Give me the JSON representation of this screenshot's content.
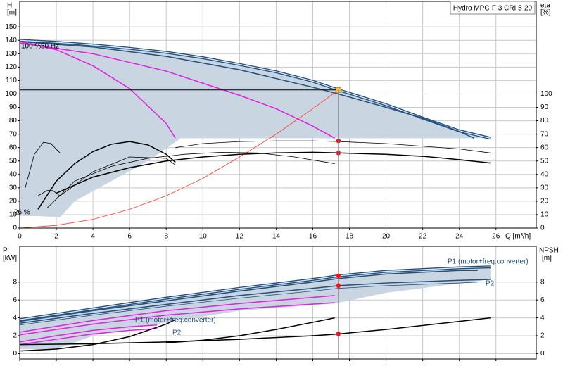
{
  "chart_data": [
    {
      "type": "line",
      "title": "Hydro MPC-F 3 CRI 5-20",
      "y_label": "H",
      "y_unit": "[m]",
      "y2_label": "eta",
      "y2_unit": "[%]",
      "x_label": "Q [m³/h]",
      "xlim": [
        0,
        28.2
      ],
      "xticks": [
        0,
        2,
        4,
        6,
        8,
        10,
        12,
        14,
        16,
        18,
        20,
        22,
        24,
        26
      ],
      "show_xtick_labels": true,
      "ylim": [
        0,
        169
      ],
      "yticks": [
        0,
        10,
        20,
        30,
        40,
        50,
        60,
        70,
        80,
        90,
        100,
        110,
        120,
        130,
        140,
        150
      ],
      "y2lim": [
        0,
        169
      ],
      "y2ticks": [
        0,
        10,
        20,
        30,
        40,
        50,
        60,
        70,
        80,
        90,
        100
      ],
      "grid": true,
      "annotations": [
        "100 %",
        "50 Hz",
        "26 %"
      ],
      "areas": [
        {
          "color": "#c9d5e1",
          "x": [
            0,
            2,
            4,
            6,
            8,
            10,
            12,
            14,
            16,
            18,
            20,
            22,
            24,
            25.7,
            8.8,
            7,
            5,
            3,
            2.2,
            1,
            0
          ],
          "values": [
            140,
            138.5,
            136.5,
            134,
            131,
            127,
            122,
            116.5,
            109.5,
            100.5,
            92,
            82,
            72.5,
            67,
            67,
            50,
            35,
            20,
            8,
            9,
            9
          ]
        }
      ],
      "series": [
        {
          "color": "#23507e",
          "style": "double",
          "x": [
            0,
            2,
            4,
            6,
            8,
            10,
            12,
            14,
            16,
            17.4,
            18,
            20,
            22,
            24,
            25.7
          ],
          "values": [
            140,
            138.5,
            136.5,
            134,
            131,
            127,
            122,
            116.5,
            109.5,
            103,
            100.5,
            92,
            82,
            72.5,
            67
          ]
        },
        {
          "color": "#23507e",
          "style": "single",
          "x": [
            0,
            4,
            8,
            12,
            16,
            17.4,
            20,
            22,
            24,
            24.8
          ],
          "values": [
            139,
            135,
            128,
            118,
            105,
            100,
            90,
            82,
            72,
            67
          ]
        },
        {
          "color": "#e020e0",
          "style": "single",
          "x": [
            0,
            2,
            4,
            6,
            8,
            8.5
          ],
          "values": [
            139,
            133,
            121,
            104,
            78,
            67
          ]
        },
        {
          "color": "#e020e0",
          "style": "single",
          "x": [
            0,
            4,
            8,
            12,
            14,
            16,
            17.2
          ],
          "values": [
            138,
            130,
            117,
            99,
            89,
            76,
            67
          ]
        },
        {
          "color": "#ff3a2a",
          "style": "thin",
          "x": [
            0,
            2,
            4,
            6,
            8,
            10,
            12,
            14,
            16,
            17.4
          ],
          "values": [
            0,
            2,
            6.5,
            14,
            24,
            37,
            53,
            70,
            89,
            103
          ]
        },
        {
          "color": "#000000",
          "style": "single",
          "axis": "y2",
          "x": [
            2,
            4,
            6,
            8,
            10,
            12,
            14,
            16,
            17.4,
            20,
            22,
            24,
            25.7
          ],
          "values": [
            26,
            38,
            45,
            50,
            53,
            55,
            56,
            56.5,
            56,
            55,
            53.5,
            51,
            48.5
          ]
        },
        {
          "color": "#000000",
          "style": "thin",
          "axis": "y2",
          "x": [
            8.5,
            10,
            12,
            14,
            16,
            17.4,
            20,
            22,
            24,
            25.7
          ],
          "values": [
            60,
            63,
            64.5,
            65,
            65,
            64.5,
            63,
            61,
            59,
            56
          ]
        },
        {
          "color": "#000000",
          "style": "thin",
          "axis": "y2",
          "x": [
            1.5,
            3,
            5,
            7,
            9,
            11,
            13,
            15,
            17.2
          ],
          "values": [
            15,
            35,
            46,
            52,
            55,
            56.5,
            56,
            53,
            48
          ]
        },
        {
          "color": "#000000",
          "style": "single",
          "axis": "y2",
          "x": [
            1,
            2,
            3,
            4,
            5,
            6,
            7,
            8,
            8.5
          ],
          "values": [
            14,
            35,
            48,
            57,
            62.5,
            64.5,
            62,
            55,
            49
          ]
        },
        {
          "color": "#000000",
          "style": "thin",
          "axis": "y2",
          "x": [
            2,
            4,
            6,
            8,
            8.5
          ],
          "values": [
            22,
            42,
            53,
            52,
            47
          ]
        },
        {
          "color": "#000000",
          "style": "thin",
          "axis": "y2",
          "x": [
            0.3,
            0.8,
            1.3,
            1.7,
            2.2
          ],
          "values": [
            30,
            55,
            64,
            63,
            56
          ]
        },
        {
          "color": "#000000",
          "style": "thin",
          "axis": "y2",
          "x": [
            1,
            1.5,
            1.8,
            2.2
          ],
          "values": [
            24,
            28,
            28,
            24
          ]
        }
      ],
      "markers": [
        {
          "color": "#f5b942",
          "x": 17.4,
          "value": 103
        },
        {
          "color": "#ee1111",
          "axis": "y2",
          "x": 17.4,
          "value": 65
        },
        {
          "color": "#ee1111",
          "axis": "y2",
          "x": 17.4,
          "value": 56
        }
      ]
    },
    {
      "type": "line",
      "y_label": "P",
      "y_unit": "[kW]",
      "y2_label": "NPSH",
      "y2_unit": "[m]",
      "xlim": [
        0,
        28.2
      ],
      "xticks": [
        0,
        2,
        4,
        6,
        8,
        10,
        12,
        14,
        16,
        18,
        20,
        22,
        24,
        26
      ],
      "show_xtick_labels": false,
      "ylim": [
        -0.6,
        12
      ],
      "yticks": [
        0,
        2,
        4,
        6,
        8
      ],
      "y2lim": [
        -0.6,
        12
      ],
      "y2ticks": [
        0,
        2,
        4,
        6,
        8
      ],
      "grid": true,
      "annotations": [
        "P1 (motor+freq.converter)",
        "P2",
        "P1 (motor+freq.converter)",
        "P2"
      ],
      "areas": [
        {
          "color": "#c9d5e1",
          "x": [
            0,
            4,
            8,
            12,
            16,
            20,
            24,
            25.7,
            25.7,
            20,
            17.2,
            12,
            8,
            4,
            2,
            0
          ],
          "values": [
            3.8,
            5.0,
            6.2,
            7.3,
            8.3,
            9.2,
            9.6,
            9.7,
            8.3,
            6.8,
            5.6,
            4.8,
            3.5,
            2,
            0.5,
            0.5
          ]
        }
      ],
      "series": [
        {
          "color": "#23507e",
          "style": "double",
          "x": [
            0,
            4,
            8,
            12,
            16,
            17.4,
            20,
            24,
            25.7
          ],
          "values": [
            3.8,
            5.0,
            6.2,
            7.3,
            8.3,
            8.7,
            9.2,
            9.6,
            9.7
          ]
        },
        {
          "color": "#23507e",
          "style": "single",
          "x": [
            0,
            4,
            8,
            12,
            16,
            17.4,
            20,
            24,
            25
          ],
          "values": [
            3.6,
            4.8,
            5.9,
            7.0,
            8.0,
            8.4,
            8.9,
            9.3,
            9.3
          ]
        },
        {
          "color": "#23507e",
          "style": "single",
          "x": [
            0,
            4,
            8,
            12,
            16,
            17.4,
            20,
            24,
            25.7
          ],
          "values": [
            3.4,
            4.5,
            5.5,
            6.5,
            7.3,
            7.6,
            7.9,
            8.2,
            8.3
          ]
        },
        {
          "color": "#23507e",
          "style": "thin",
          "x": [
            0,
            4,
            8,
            12,
            16,
            17.4,
            20,
            24,
            25
          ],
          "values": [
            3.2,
            4.3,
            5.3,
            6.2,
            7.0,
            7.3,
            7.6,
            7.9,
            8.0
          ]
        },
        {
          "color": "#e020e0",
          "style": "single",
          "x": [
            0,
            4,
            8,
            12,
            17.2
          ],
          "values": [
            2.4,
            3.7,
            4.8,
            5.6,
            6.5
          ]
        },
        {
          "color": "#e020e0",
          "style": "single",
          "x": [
            0,
            4,
            8,
            12,
            17.2
          ],
          "values": [
            2.1,
            3.3,
            4.3,
            5.0,
            5.7
          ]
        },
        {
          "color": "#e020e0",
          "style": "single",
          "x": [
            0,
            2,
            4,
            6,
            7.5
          ],
          "values": [
            1.3,
            2.0,
            2.6,
            3.0,
            3.2
          ]
        },
        {
          "color": "#e020e0",
          "style": "single",
          "x": [
            0,
            2,
            4,
            6,
            7.5
          ],
          "values": [
            1.0,
            1.6,
            2.2,
            2.6,
            2.8
          ]
        },
        {
          "color": "#000000",
          "style": "single",
          "axis": "y2",
          "x": [
            0,
            4,
            8,
            12,
            16,
            17.4,
            20,
            24,
            25.7
          ],
          "values": [
            1.0,
            1.1,
            1.3,
            1.6,
            2.0,
            2.2,
            2.7,
            3.6,
            4.0
          ]
        },
        {
          "color": "#000000",
          "style": "single",
          "axis": "y2",
          "x": [
            0,
            2,
            4,
            6,
            8,
            8.5
          ],
          "values": [
            0.3,
            0.5,
            1.0,
            1.9,
            3.3,
            3.8
          ]
        },
        {
          "color": "#000000",
          "style": "single",
          "axis": "y2",
          "x": [
            8,
            10,
            12,
            14,
            16,
            17.2
          ],
          "values": [
            1.2,
            1.5,
            2.0,
            2.7,
            3.5,
            4.0
          ]
        }
      ],
      "markers": [
        {
          "color": "#ee1111",
          "x": 17.4,
          "value": 8.7
        },
        {
          "color": "#ee1111",
          "x": 17.4,
          "value": 7.6
        },
        {
          "color": "#ee1111",
          "axis": "y2",
          "x": 17.4,
          "value": 2.2
        }
      ]
    }
  ]
}
